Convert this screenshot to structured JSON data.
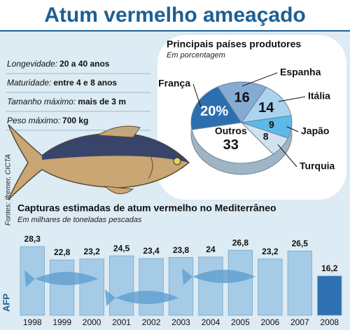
{
  "title": "Atum vermelho ameaçado",
  "facts": [
    {
      "label": "Longevidade:",
      "value": "20 a 40 anos"
    },
    {
      "label": "Maturidade:",
      "value": "entre 4 e 8 anos"
    },
    {
      "label": "Tamanho máximo:",
      "value": "mais de 3 m"
    },
    {
      "label": "Peso máximo:",
      "value": "700 kg"
    }
  ],
  "source": "Fontes: Ifremer, CICTA",
  "credit": "AFP",
  "chart_data": [
    {
      "type": "pie",
      "title": "Principais países produtores",
      "subtitle": "Em porcentagem",
      "categories": [
        "França",
        "Espanha",
        "Itália",
        "Japão",
        "Turquia",
        "Outros"
      ],
      "values": [
        20,
        16,
        14,
        9,
        8,
        33
      ],
      "value_labels": [
        "20%",
        "16",
        "14",
        "9",
        "8",
        "33"
      ],
      "colors": [
        "#2d6fae",
        "#86abd3",
        "#a9d3ee",
        "#5db9e8",
        "#cfe2f0",
        "#ffffff"
      ]
    },
    {
      "type": "bar",
      "title": "Capturas estimadas de atum vermelho no Mediterrâneo",
      "subtitle": "Em milhares de toneladas pescadas",
      "categories": [
        "1998",
        "1999",
        "2000",
        "2001",
        "2002",
        "2003",
        "2004",
        "2005",
        "2006",
        "2007",
        "2008"
      ],
      "values": [
        28.3,
        22.8,
        23.2,
        24.5,
        23.4,
        23.8,
        24,
        26.8,
        23.2,
        26.5,
        16.2
      ],
      "value_labels": [
        "28,3",
        "22,8",
        "23,2",
        "24,5",
        "23,4",
        "23,8",
        "24",
        "26,8",
        "23,2",
        "26,5",
        "16,2"
      ],
      "color": "#a6cbe6",
      "highlight_color": "#2e70b2"
    }
  ]
}
